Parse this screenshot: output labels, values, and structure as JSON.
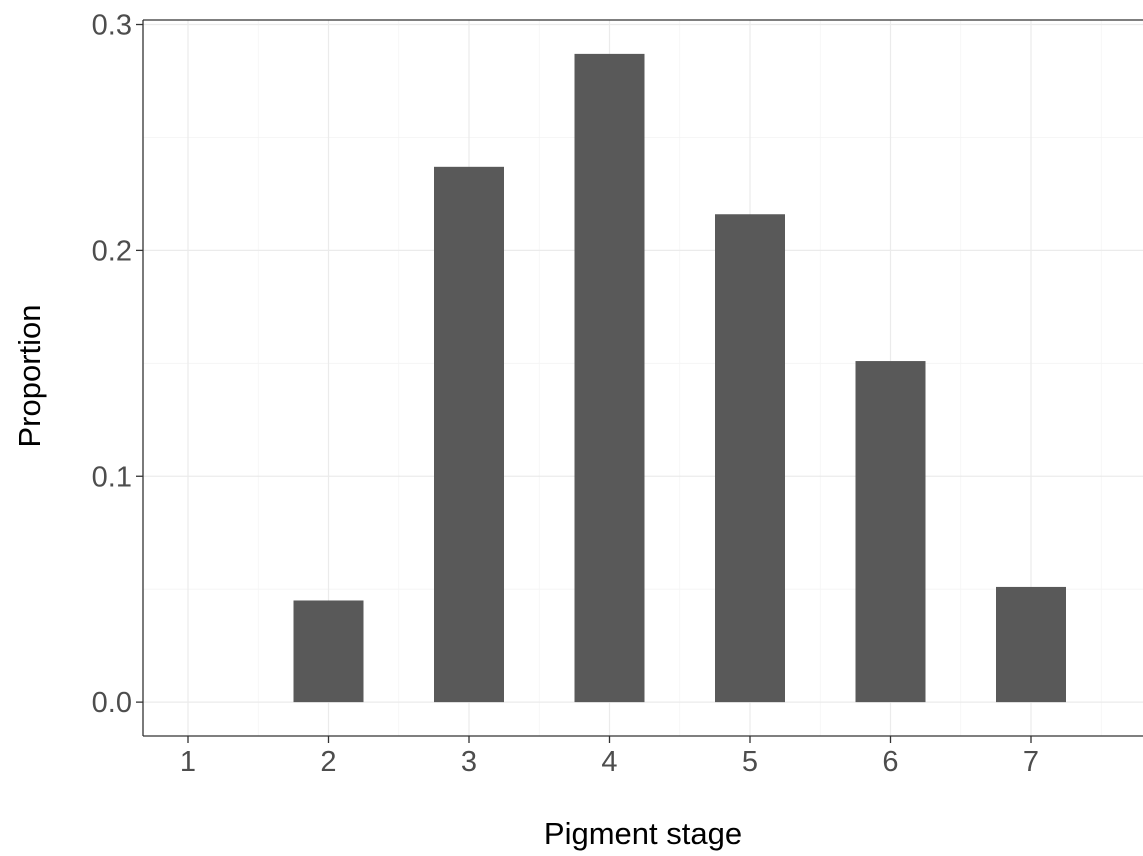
{
  "chart_data": {
    "type": "bar",
    "categories": [
      "1",
      "2",
      "3",
      "4",
      "5",
      "6",
      "7"
    ],
    "values": [
      0.0,
      0.045,
      0.237,
      0.287,
      0.216,
      0.151,
      0.051
    ],
    "title": "",
    "xlabel": "Pigment stage",
    "ylabel": "Proportion",
    "ylim": [
      -0.015,
      0.302
    ],
    "yticks": [
      0.0,
      0.1,
      0.2,
      0.3
    ],
    "ytick_labels": [
      "0.0",
      "0.1",
      "0.2",
      "0.3"
    ],
    "grid": true,
    "bar_color": "#595959"
  }
}
